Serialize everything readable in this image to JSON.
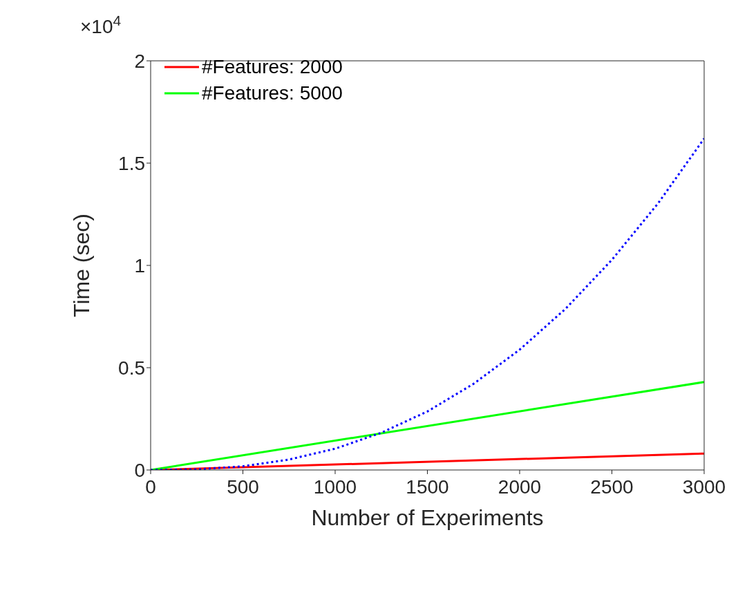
{
  "chart_data": {
    "type": "line",
    "xlabel": "Number of Experiments",
    "ylabel": "Time (sec)",
    "xlim": [
      0,
      3000
    ],
    "xticks": [
      0,
      500,
      1000,
      1500,
      2000,
      2500,
      3000
    ],
    "ylim": [
      0,
      2
    ],
    "yticks": [
      0,
      0.5,
      1,
      1.5,
      2
    ],
    "annotations": [
      "×10$^{4}$"
    ],
    "legend": "top left",
    "series": [
      {
        "name": "#Features: 2000",
        "color": "#ff0000",
        "line_style": "solid",
        "x": [
          0,
          3000
        ],
        "values": [
          0,
          0.08
        ]
      },
      {
        "name": "#Features: 5000",
        "color": "#00ff00",
        "line_style": "solid",
        "x": [
          0,
          3000
        ],
        "values": [
          0,
          0.43
        ]
      },
      {
        "color": "#0000ff",
        "line_style": "dotted",
        "x": [
          0,
          250,
          500,
          750,
          1000,
          1250,
          1500,
          1750,
          2000,
          2250,
          2500,
          2750,
          3000
        ],
        "values": [
          0,
          0.003,
          0.018,
          0.051,
          0.104,
          0.182,
          0.286,
          0.421,
          0.588,
          0.789,
          1.027,
          1.303,
          1.62
        ]
      }
    ]
  }
}
